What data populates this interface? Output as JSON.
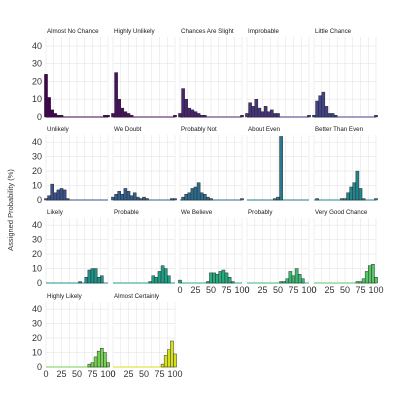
{
  "chart_data": {
    "type": "bar",
    "layout": "faceted histograms",
    "ylabel": "Assigned Probability (%)",
    "xlim": [
      0,
      100
    ],
    "ylim": [
      0,
      45
    ],
    "x_ticks": [
      "0",
      "25",
      "50",
      "75",
      "100"
    ],
    "y_ticks": [
      "0",
      "10",
      "20",
      "30",
      "40"
    ],
    "bin_centers": [
      0,
      5,
      10,
      15,
      20,
      25,
      30,
      35,
      40,
      45,
      50,
      55,
      60,
      65,
      70,
      75,
      80,
      85,
      90,
      95,
      100
    ],
    "grid": true,
    "legend": "none",
    "series": [
      {
        "name": "Almost No Chance",
        "color": "#440154",
        "values": [
          24,
          11,
          4,
          2,
          1,
          1,
          0,
          0,
          0,
          0,
          0,
          0,
          0,
          0,
          0,
          0,
          0,
          0,
          0,
          1,
          1
        ]
      },
      {
        "name": "Highly Unlikely",
        "color": "#47115e",
        "values": [
          2,
          25,
          10,
          5,
          3,
          2,
          1,
          0,
          0,
          0,
          0,
          0,
          0,
          0,
          0,
          0,
          0,
          0,
          0,
          0,
          1
        ]
      },
      {
        "name": "Chances Are Slight",
        "color": "#48266f",
        "values": [
          2,
          16,
          10,
          5,
          4,
          3,
          2,
          1,
          1,
          0,
          0,
          0,
          0,
          0,
          0,
          0,
          0,
          0,
          0,
          0,
          1
        ]
      },
      {
        "name": "Improbable",
        "color": "#46357d",
        "values": [
          2,
          8,
          6,
          10,
          5,
          3,
          6,
          3,
          4,
          2,
          2,
          0,
          0,
          0,
          0,
          0,
          0,
          0,
          0,
          0,
          1
        ]
      },
      {
        "name": "Little Chance",
        "color": "#404387",
        "values": [
          1,
          9,
          12,
          14,
          6,
          2,
          2,
          1,
          0,
          0,
          0,
          0,
          0,
          0,
          0,
          0,
          0,
          0,
          0,
          0,
          1
        ]
      },
      {
        "name": "Unlikely",
        "color": "#3a528b",
        "values": [
          1,
          3,
          11,
          5,
          7,
          8,
          7,
          1,
          0,
          0,
          0,
          0,
          0,
          0,
          0,
          0,
          0,
          0,
          0,
          0,
          0
        ]
      },
      {
        "name": "We Doubt",
        "color": "#335f8d",
        "values": [
          2,
          4,
          6,
          4,
          8,
          6,
          3,
          5,
          2,
          1,
          2,
          1,
          0,
          0,
          0,
          0,
          0,
          0,
          0,
          1,
          1
        ]
      },
      {
        "name": "Probably Not",
        "color": "#2d6c8e",
        "values": [
          0,
          2,
          4,
          5,
          8,
          9,
          12,
          5,
          4,
          2,
          1,
          0,
          0,
          0,
          0,
          0,
          0,
          0,
          0,
          0,
          1
        ]
      },
      {
        "name": "About Even",
        "color": "#287a8e",
        "values": [
          0,
          0,
          0,
          0,
          0,
          0,
          0,
          0,
          0,
          1,
          2,
          44,
          0,
          0,
          0,
          0,
          0,
          0,
          0,
          0,
          0
        ]
      },
      {
        "name": "Better Than Even",
        "color": "#23868d",
        "values": [
          0,
          1,
          0,
          0,
          0,
          0,
          0,
          0,
          0,
          1,
          1,
          5,
          9,
          12,
          20,
          8,
          1,
          0,
          0,
          0,
          1
        ]
      },
      {
        "name": "Likely",
        "color": "#1f938b",
        "values": [
          0,
          0,
          0,
          0,
          0,
          0,
          0,
          0,
          0,
          0,
          0,
          1,
          0,
          4,
          9,
          10,
          10,
          4,
          5,
          0,
          0
        ]
      },
      {
        "name": "Probable",
        "color": "#1fa086",
        "values": [
          0,
          0,
          0,
          0,
          0,
          0,
          0,
          0,
          0,
          0,
          0,
          0,
          1,
          5,
          4,
          8,
          12,
          10,
          5,
          0,
          0
        ]
      },
      {
        "name": "We Believe",
        "color": "#29ad7f",
        "values": [
          2,
          0,
          0,
          0,
          0,
          0,
          0,
          0,
          0,
          1,
          7,
          7,
          6,
          8,
          9,
          7,
          4,
          1,
          0,
          0,
          0
        ]
      },
      {
        "name": "Probably",
        "color": "#3bb974",
        "values": [
          0,
          0,
          0,
          0,
          0,
          0,
          0,
          0,
          0,
          0,
          0,
          1,
          1,
          3,
          8,
          5,
          10,
          6,
          3,
          0,
          0
        ]
      },
      {
        "name": "Very Good Chance",
        "color": "#56c566",
        "values": [
          0,
          0,
          0,
          0,
          0,
          0,
          0,
          0,
          0,
          0,
          0,
          0,
          0,
          0,
          1,
          1,
          3,
          8,
          12,
          13,
          4
        ]
      },
      {
        "name": "Highly Likely",
        "color": "#75d054",
        "values": [
          0,
          0,
          0,
          0,
          0,
          0,
          0,
          0,
          0,
          0,
          0,
          0,
          0,
          0,
          2,
          3,
          7,
          11,
          13,
          10,
          3
        ]
      },
      {
        "name": "Almost Certainly",
        "color": "#d6e01d",
        "values": [
          0,
          0,
          0,
          0,
          0,
          0,
          0,
          0,
          0,
          0,
          0,
          0,
          0,
          0,
          0,
          0,
          2,
          8,
          12,
          18,
          9
        ]
      }
    ]
  }
}
